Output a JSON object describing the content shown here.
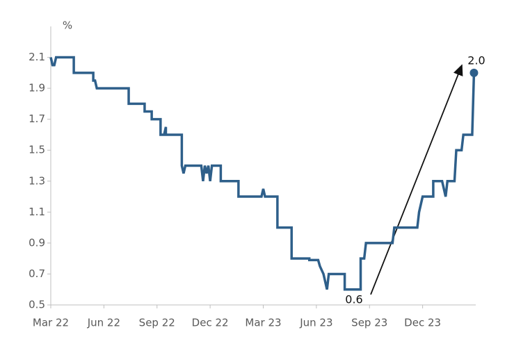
{
  "chart_data": {
    "type": "line",
    "y_label": "%",
    "xlim": [
      0,
      24
    ],
    "xticks": [
      {
        "value": 0,
        "label": "Mar 22"
      },
      {
        "value": 3,
        "label": "Jun 22"
      },
      {
        "value": 6,
        "label": "Sep 22"
      },
      {
        "value": 9,
        "label": "Dec 22"
      },
      {
        "value": 12,
        "label": "Mar 23"
      },
      {
        "value": 15,
        "label": "Jun 23"
      },
      {
        "value": 18,
        "label": "Sep 23"
      },
      {
        "value": 21,
        "label": "Dec 23"
      }
    ],
    "ylim": [
      0.5,
      2.3
    ],
    "yticks": [
      0.5,
      0.7,
      0.9,
      1.1,
      1.3,
      1.5,
      1.7,
      1.9,
      2.1
    ],
    "grid": false,
    "series": [
      {
        "color": "#2e5f8a",
        "x": [
          0,
          0.1,
          0.2,
          0.3,
          1.3,
          1.3,
          2.4,
          2.4,
          2.5,
          2.6,
          4.4,
          4.4,
          5.3,
          5.3,
          5.7,
          5.7,
          6.2,
          6.2,
          6.4,
          6.5,
          6.5,
          7.4,
          7.4,
          7.5,
          7.6,
          8.5,
          8.6,
          8.7,
          8.8,
          8.9,
          9.0,
          9.1,
          9.6,
          9.6,
          10.6,
          10.6,
          11.9,
          12.0,
          12.1,
          12.8,
          12.8,
          13.6,
          13.6,
          14.6,
          14.6,
          15.1,
          15.2,
          15.4,
          15.6,
          15.7,
          16.6,
          16.6,
          17.5,
          17.5,
          17.7,
          17.8,
          19.3,
          19.4,
          20.7,
          20.8,
          20.9,
          21.0,
          21.6,
          21.6,
          22.1,
          22.2,
          22.3,
          22.4,
          22.8,
          22.9,
          23.2,
          23.3,
          23.8,
          23.9
        ],
        "values": [
          2.1,
          2.05,
          2.05,
          2.1,
          2.1,
          2.0,
          2.0,
          1.95,
          1.95,
          1.9,
          1.9,
          1.8,
          1.8,
          1.75,
          1.75,
          1.7,
          1.7,
          1.6,
          1.6,
          1.65,
          1.6,
          1.6,
          1.4,
          1.35,
          1.4,
          1.4,
          1.3,
          1.4,
          1.35,
          1.4,
          1.3,
          1.4,
          1.4,
          1.3,
          1.3,
          1.2,
          1.2,
          1.25,
          1.2,
          1.2,
          1.0,
          1.0,
          0.8,
          0.8,
          0.79,
          0.79,
          0.75,
          0.7,
          0.6,
          0.7,
          0.7,
          0.6,
          0.6,
          0.8,
          0.8,
          0.9,
          0.9,
          1.0,
          1.0,
          1.1,
          1.15,
          1.2,
          1.2,
          1.3,
          1.3,
          1.25,
          1.2,
          1.3,
          1.3,
          1.5,
          1.5,
          1.6,
          1.6,
          2.0
        ]
      }
    ],
    "annotations": [
      {
        "text": "0.6"
      },
      {
        "text": "2.0"
      }
    ]
  }
}
